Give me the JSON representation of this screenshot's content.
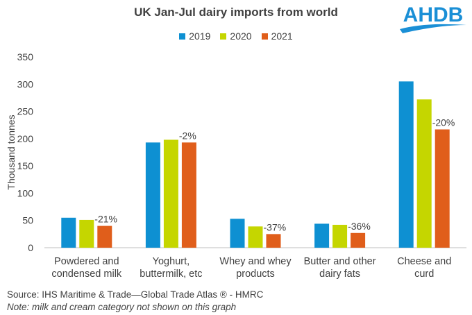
{
  "logo_text": "AHDB",
  "colors": {
    "2019": "#0e90d2",
    "2020": "#c5d600",
    "2021": "#e05e1b",
    "logo": "#1a8fd6"
  },
  "footer": {
    "source": "Source: IHS Maritime & Trade—Global Trade Atlas ®  - HMRC",
    "note": "Note: milk and cream category not shown  on this graph"
  },
  "chart_data": {
    "type": "bar",
    "title": "UK Jan-Jul dairy imports from world",
    "ylabel": "Thousand tonnes",
    "xlabel": "",
    "ylim": [
      0,
      350
    ],
    "yticks": [
      0,
      50,
      100,
      150,
      200,
      250,
      300,
      350
    ],
    "grid": false,
    "legend_position": "top-center",
    "categories": [
      [
        "Powdered and",
        "condensed milk"
      ],
      [
        "Yoghurt,",
        "buttermilk, etc"
      ],
      [
        "Whey and whey",
        "products"
      ],
      [
        "Butter and other",
        "dairy fats"
      ],
      [
        "Cheese and",
        "curd"
      ]
    ],
    "series": [
      {
        "name": "2019",
        "values": [
          55,
          193,
          53,
          44,
          305
        ]
      },
      {
        "name": "2020",
        "values": [
          51,
          198,
          39,
          42,
          272
        ]
      },
      {
        "name": "2021",
        "values": [
          40,
          193,
          25,
          27,
          217
        ]
      }
    ],
    "annotations": [
      "-21%",
      "-2%",
      "-37%",
      "-36%",
      "-20%"
    ]
  }
}
